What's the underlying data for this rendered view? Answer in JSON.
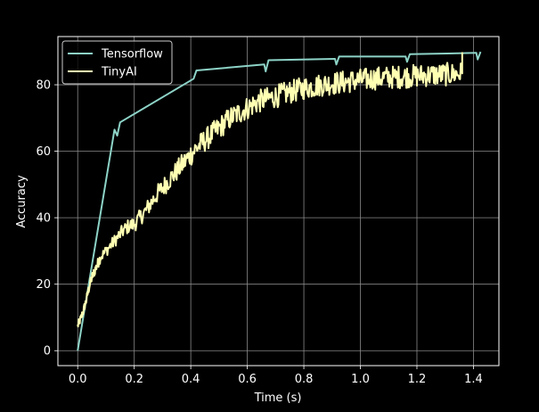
{
  "chart_data": {
    "type": "line",
    "title": "",
    "xlabel": "Time (s)",
    "ylabel": "Accuracy",
    "xlim": [
      -0.07,
      1.49
    ],
    "ylim": [
      -4.5,
      94.5
    ],
    "xticks": [
      0.0,
      0.2,
      0.4,
      0.6,
      0.8,
      1.0,
      1.2,
      1.4
    ],
    "xtick_labels": [
      "0.0",
      "0.2",
      "0.4",
      "0.6",
      "0.8",
      "1.0",
      "1.2",
      "1.4"
    ],
    "yticks": [
      0,
      20,
      40,
      60,
      80
    ],
    "ytick_labels": [
      "0",
      "20",
      "40",
      "60",
      "80"
    ],
    "grid": true,
    "legend_position": "top-left",
    "background": "#000000",
    "series": [
      {
        "name": "Tensorflow",
        "color": "#8dd3c7",
        "x": [
          0.0,
          0.13,
          0.14,
          0.15,
          0.41,
          0.42,
          0.66,
          0.665,
          0.675,
          0.91,
          0.915,
          0.925,
          1.16,
          1.165,
          1.175,
          1.41,
          1.415,
          1.425
        ],
        "y": [
          0,
          66.5,
          64.7,
          68.7,
          81.8,
          84.3,
          86.1,
          84.0,
          87.4,
          87.8,
          86.1,
          88.5,
          88.5,
          86.9,
          89.2,
          89.6,
          87.6,
          89.9
        ]
      },
      {
        "name": "TinyAI",
        "color": "#ffffb3",
        "x": [
          0.0,
          0.01,
          0.02,
          0.03,
          0.04,
          0.05,
          0.06,
          0.07,
          0.08,
          0.1,
          0.12,
          0.14,
          0.16,
          0.18,
          0.2,
          0.22,
          0.24,
          0.26,
          0.28,
          0.3,
          0.32,
          0.34,
          0.36,
          0.38,
          0.4,
          0.42,
          0.44,
          0.46,
          0.48,
          0.5,
          0.52,
          0.54,
          0.56,
          0.58,
          0.6,
          0.62,
          0.64,
          0.66,
          0.68,
          0.7,
          0.72,
          0.74,
          0.76,
          0.78,
          0.8,
          0.82,
          0.84,
          0.86,
          0.88,
          0.9,
          0.92,
          0.94,
          0.96,
          0.98,
          1.0,
          1.02,
          1.04,
          1.06,
          1.08,
          1.1,
          1.12,
          1.14,
          1.16,
          1.18,
          1.2,
          1.22,
          1.24,
          1.26,
          1.28,
          1.3,
          1.32,
          1.34,
          1.36
        ],
        "y": [
          7.5,
          9.5,
          12,
          15,
          19,
          22,
          24,
          26,
          28,
          30,
          32,
          34,
          36,
          37.5,
          38,
          40,
          42,
          44.5,
          47,
          49,
          51,
          53,
          55,
          57,
          59,
          61,
          62.5,
          64,
          65.5,
          67,
          68.5,
          70,
          71,
          72,
          73,
          74,
          75,
          75.5,
          76,
          76.5,
          77,
          77.5,
          78,
          78.5,
          79,
          79.3,
          79.6,
          80,
          80.2,
          80.4,
          80.6,
          80.8,
          81,
          81.2,
          81.4,
          81.6,
          81.8,
          82,
          82.1,
          82.2,
          82.3,
          82.4,
          82.5,
          82.6,
          82.7,
          82.8,
          82.9,
          83,
          83,
          83.1,
          83.2,
          83.3,
          83.4
        ]
      }
    ]
  }
}
